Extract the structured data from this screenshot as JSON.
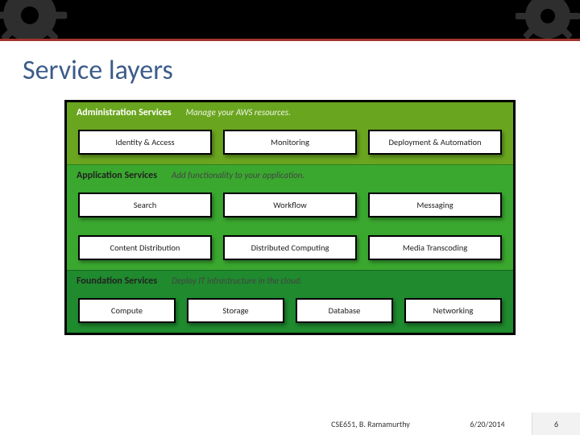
{
  "colors": {
    "accent": "#a0342c",
    "title": "#3c5c8a"
  },
  "title": "Service layers",
  "layers": [
    {
      "name": "Administration Services",
      "desc": "Manage your AWS resources.",
      "bg": "#6aa51f",
      "header_text_dark": false,
      "rows": [
        [
          "Identity & Access",
          "Monitoring",
          "Deployment & Automation"
        ]
      ]
    },
    {
      "name": "Application Services",
      "desc": "Add functionality to your application.",
      "bg": "#3aa82f",
      "header_text_dark": true,
      "rows": [
        [
          "Search",
          "Workflow",
          "Messaging"
        ],
        [
          "Content Distribution",
          "Distributed Computing",
          "Media Transcoding"
        ]
      ]
    },
    {
      "name": "Foundation Services",
      "desc": "Deploy IT infrastructure in the cloud.",
      "bg": "#1f8a2e",
      "header_text_dark": true,
      "rows": [
        [
          "Compute",
          "Storage",
          "Database",
          "Networking"
        ]
      ]
    }
  ],
  "footer": {
    "credit": "CSE651, B. Ramamurthy",
    "date": "6/20/2014",
    "page": "6"
  }
}
